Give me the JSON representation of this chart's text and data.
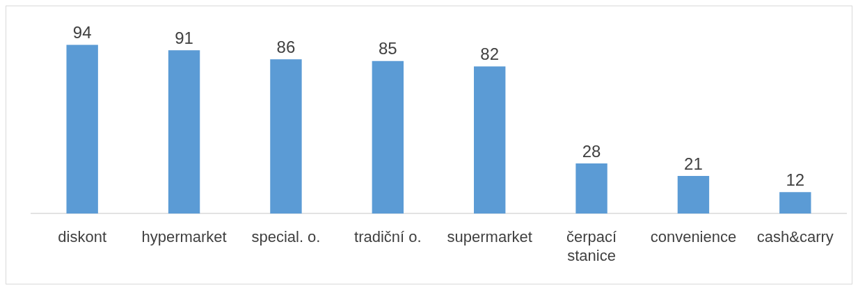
{
  "chart_data": {
    "type": "bar",
    "categories": [
      "diskont",
      "hypermarket",
      "special. o.",
      "tradiční o.",
      "supermarket",
      "čerpací stanice",
      "convenience",
      "cash&carry"
    ],
    "values": [
      94,
      91,
      86,
      85,
      82,
      28,
      21,
      12
    ],
    "color": "#5b9bd5",
    "data_labels": true,
    "grid": false,
    "legend": false
  }
}
